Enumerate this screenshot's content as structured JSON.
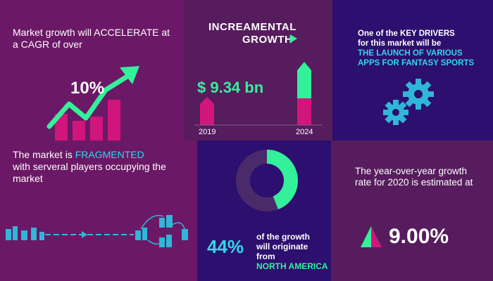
{
  "panel1": {
    "heading": "Market growth will ACCELERATE at  a CAGR of over",
    "value": "10%"
  },
  "panel2": {
    "title_line1": "INCREAMENTAL",
    "title_line2": "GROWTH",
    "value": "$ 9.34 bn",
    "year_start": "2019",
    "year_end": "2024"
  },
  "panel3": {
    "line1": "One of the KEY DRIVERS",
    "line2": "for this market will be",
    "highlight1": "THE LAUNCH OF VARIOUS",
    "highlight2": "APPS FOR FANTASY SPORTS"
  },
  "panel4": {
    "text_before": "The market is ",
    "highlight": "FRAGMENTED",
    "text_after_line1": "with serveral players occupying the",
    "text_after_line2": "market"
  },
  "panel5": {
    "percent": "44%",
    "desc_line1": "of the growth",
    "desc_line2": "will originate",
    "desc_line3": "from",
    "region": "NORTH AMERICA",
    "share": 0.44
  },
  "panel6": {
    "line1": "The year-over-year growth",
    "line2": "rate for 2020 is estimated at",
    "value": "9.00%"
  },
  "colors": {
    "magenta": "#d0167c",
    "green": "#35f09a",
    "cyan": "#30d8e8",
    "purple_dark": "#2c0f6e"
  }
}
